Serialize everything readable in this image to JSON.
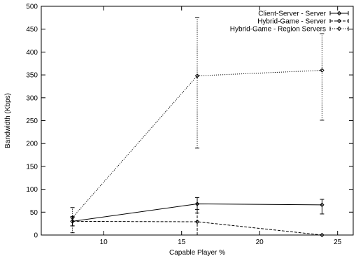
{
  "chart_data": {
    "type": "line",
    "title": "",
    "xlabel": "Capable Player %",
    "ylabel": "Bandwidth (Kbps)",
    "xlim": [
      6,
      26
    ],
    "ylim": [
      0,
      500
    ],
    "xticks": [
      10,
      15,
      20,
      25
    ],
    "yticks": [
      0,
      50,
      100,
      150,
      200,
      250,
      300,
      350,
      400,
      450,
      500
    ],
    "grid": false,
    "legend_position": "top-right",
    "series": [
      {
        "name": "Client-Server - Server",
        "style": "solid",
        "color": "#000000",
        "x": [
          8,
          16,
          24
        ],
        "y": [
          30,
          68,
          66
        ],
        "error_low": [
          20,
          48,
          46
        ],
        "error_high": [
          40,
          82,
          78
        ]
      },
      {
        "name": "Hybrid-Game - Server",
        "style": "dashed",
        "color": "#000000",
        "x": [
          8,
          16,
          24
        ],
        "y": [
          30,
          29,
          0
        ],
        "error_low": [
          20,
          0,
          0
        ],
        "error_high": [
          40,
          56,
          0
        ]
      },
      {
        "name": "Hybrid-Game - Region Servers",
        "style": "dotted",
        "color": "#000000",
        "x": [
          8,
          16,
          24
        ],
        "y": [
          38,
          348,
          360
        ],
        "error_low": [
          5,
          190,
          251
        ],
        "error_high": [
          60,
          475,
          440
        ]
      }
    ]
  }
}
